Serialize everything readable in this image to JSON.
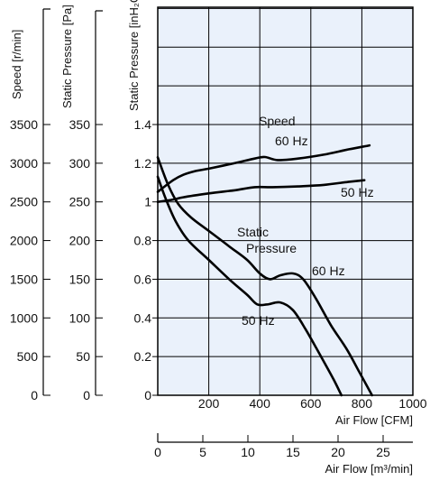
{
  "chart_data": {
    "type": "line",
    "colors": {
      "plot_background": "#eaf1fb",
      "grid": "#000000",
      "line": "#000000"
    },
    "x_axis_primary": {
      "label": "Air Flow [CFM]",
      "range": [
        0,
        1000
      ],
      "ticks": [
        "0",
        "200",
        "400",
        "600",
        "800",
        "1000"
      ]
    },
    "x_axis_secondary": {
      "label": "Air Flow [m³/min]",
      "range": [
        0,
        28.3
      ],
      "ticks": [
        "0",
        "5",
        "10",
        "15",
        "20",
        "25"
      ]
    },
    "y_axis_inh2o": {
      "label": "Static Pressure [inH₂O]",
      "range": [
        0,
        1.4
      ],
      "ticks": [
        "0",
        "0.2",
        "0.4",
        "0.6",
        "0.8",
        "1",
        "1.2",
        "1.4"
      ]
    },
    "y_axis_pa": {
      "label": "Static Pressure [Pa]",
      "range": [
        0,
        350
      ],
      "ticks": [
        "0",
        "50",
        "100",
        "150",
        "200",
        "250",
        "300",
        "350"
      ]
    },
    "y_axis_speed": {
      "label": "Speed [r/min]",
      "range": [
        0,
        3500
      ],
      "ticks": [
        "0",
        "500",
        "1000",
        "1500",
        "2000",
        "2500",
        "3000",
        "3500"
      ]
    },
    "grid": true,
    "annotations": {
      "speed": "Speed",
      "speed_60": "60 Hz",
      "speed_50": "50 Hz",
      "static": "Static",
      "pressure": "Pressure",
      "sp_60": "60 Hz",
      "sp_50": "50 Hz"
    },
    "series": [
      {
        "key": "speed_60hz",
        "axis": "speed",
        "points": [
          [
            0,
            2630
          ],
          [
            60,
            2780
          ],
          [
            100,
            2850
          ],
          [
            150,
            2900
          ],
          [
            200,
            2930
          ],
          [
            300,
            3000
          ],
          [
            380,
            3060
          ],
          [
            420,
            3080
          ],
          [
            470,
            3040
          ],
          [
            550,
            3060
          ],
          [
            650,
            3110
          ],
          [
            750,
            3180
          ],
          [
            830,
            3230
          ]
        ]
      },
      {
        "key": "speed_50hz",
        "axis": "speed",
        "points": [
          [
            0,
            2500
          ],
          [
            60,
            2530
          ],
          [
            100,
            2560
          ],
          [
            200,
            2610
          ],
          [
            300,
            2650
          ],
          [
            380,
            2690
          ],
          [
            450,
            2690
          ],
          [
            550,
            2700
          ],
          [
            650,
            2720
          ],
          [
            750,
            2760
          ],
          [
            810,
            2780
          ]
        ]
      },
      {
        "key": "static_pressure_60hz",
        "axis": "inh2o",
        "points": [
          [
            0,
            1.23
          ],
          [
            40,
            1.09
          ],
          [
            80,
            0.99
          ],
          [
            130,
            0.92
          ],
          [
            200,
            0.85
          ],
          [
            280,
            0.77
          ],
          [
            350,
            0.7
          ],
          [
            400,
            0.63
          ],
          [
            440,
            0.6
          ],
          [
            480,
            0.62
          ],
          [
            530,
            0.63
          ],
          [
            570,
            0.6
          ],
          [
            620,
            0.5
          ],
          [
            680,
            0.36
          ],
          [
            740,
            0.24
          ],
          [
            790,
            0.12
          ],
          [
            840,
            0
          ]
        ]
      },
      {
        "key": "static_pressure_50hz",
        "axis": "inh2o",
        "points": [
          [
            0,
            1.13
          ],
          [
            30,
            1.02
          ],
          [
            70,
            0.9
          ],
          [
            120,
            0.8
          ],
          [
            200,
            0.7
          ],
          [
            280,
            0.6
          ],
          [
            350,
            0.52
          ],
          [
            390,
            0.47
          ],
          [
            430,
            0.47
          ],
          [
            480,
            0.48
          ],
          [
            530,
            0.44
          ],
          [
            580,
            0.34
          ],
          [
            640,
            0.2
          ],
          [
            690,
            0.08
          ],
          [
            720,
            0
          ]
        ]
      }
    ]
  }
}
